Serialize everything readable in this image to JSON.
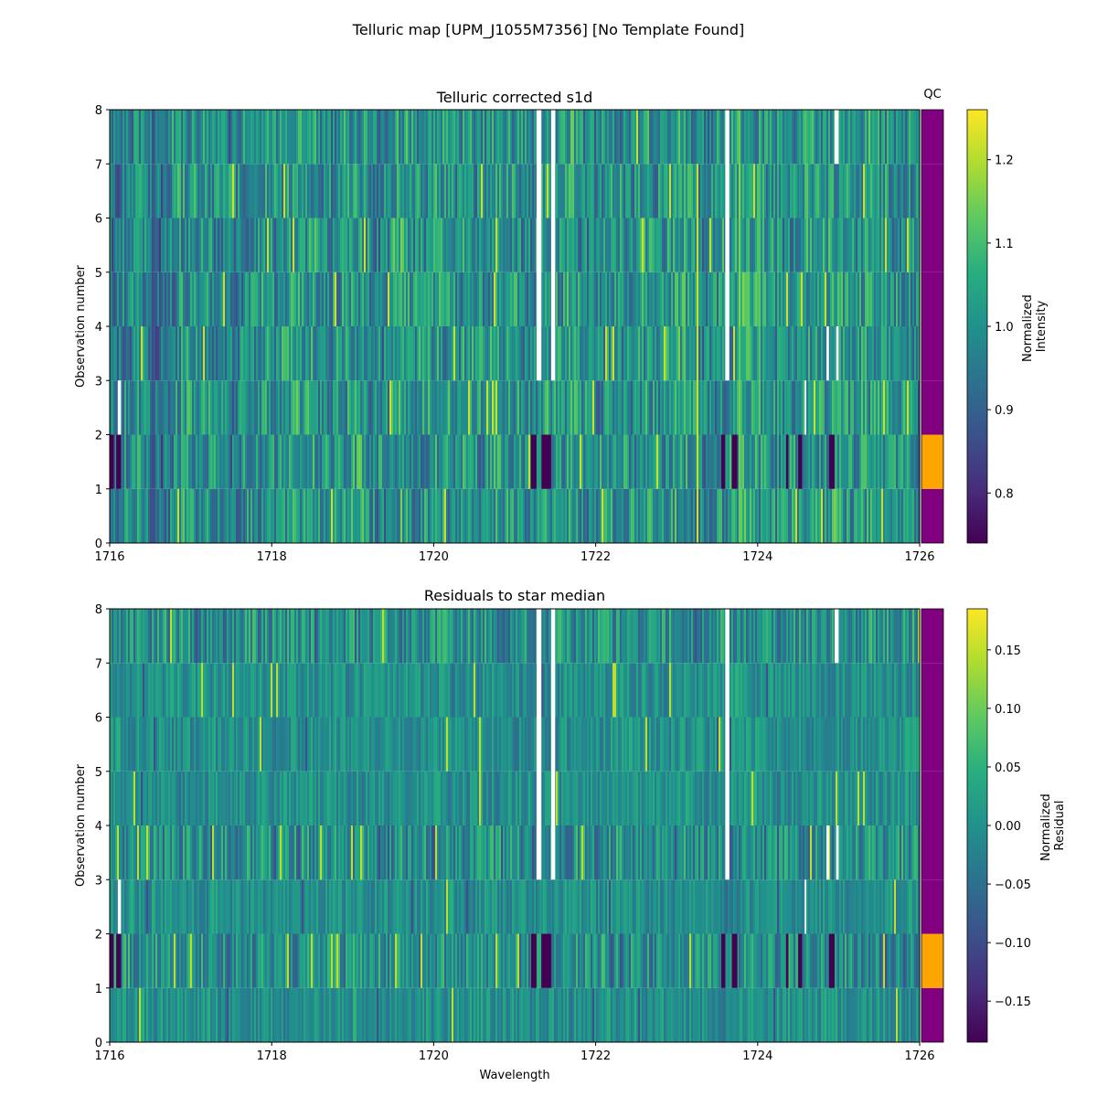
{
  "figure": {
    "suptitle": "Telluric map [UPM_J1055M7356] [No Template Found]"
  },
  "chart_data": [
    {
      "type": "heatmap",
      "title": "Telluric corrected s1d",
      "xlabel": "",
      "ylabel": "Observation number",
      "xlim": [
        1716,
        1726
      ],
      "ylim": [
        0,
        8
      ],
      "x_ticks": [
        "1716",
        "1718",
        "1720",
        "1722",
        "1724",
        "1726"
      ],
      "y_ticks": [
        "0",
        "1",
        "2",
        "3",
        "4",
        "5",
        "6",
        "7",
        "8"
      ],
      "colormap": "viridis",
      "value_range": [
        0.74,
        1.26
      ],
      "colorbar_label_lines": [
        "Normalized",
        "Intensity"
      ],
      "colorbar_ticks": [
        "0.8",
        "0.9",
        "1.0",
        "1.1",
        "1.2"
      ],
      "colorbar_tick_values": [
        0.8,
        0.9,
        1.0,
        1.1,
        1.2
      ],
      "observations": 8,
      "qc_title": "QC",
      "qc": [
        "fail",
        "pass",
        "fail",
        "fail",
        "fail",
        "fail",
        "fail",
        "fail"
      ],
      "qc_colors": {
        "pass": "#ffa500",
        "fail": "#800080"
      },
      "masked_wavelengths": [
        {
          "obs": [
            3,
            8
          ],
          "ranges": [
            [
              1721.27,
              1721.33
            ],
            [
              1721.45,
              1721.5
            ],
            [
              1723.6,
              1723.65
            ]
          ]
        },
        {
          "obs": [
            7,
            8
          ],
          "ranges": [
            [
              1724.95,
              1725.0
            ]
          ]
        },
        {
          "obs": [
            2,
            3
          ],
          "ranges": [
            [
              1716.1,
              1716.14
            ],
            [
              1724.58,
              1724.6
            ]
          ]
        },
        {
          "obs": [
            3,
            4
          ],
          "ranges": [
            [
              1724.85,
              1724.88
            ],
            [
              1724.97,
              1725.0
            ]
          ]
        }
      ],
      "dark_wavelengths": [
        {
          "obs": [
            1,
            2
          ],
          "ranges": [
            [
              1716.0,
              1716.05
            ],
            [
              1716.08,
              1716.14
            ],
            [
              1721.2,
              1721.27
            ],
            [
              1721.33,
              1721.45
            ],
            [
              1723.55,
              1723.6
            ],
            [
              1723.68,
              1723.75
            ],
            [
              1724.35,
              1724.38
            ],
            [
              1724.5,
              1724.55
            ],
            [
              1724.88,
              1724.95
            ]
          ]
        }
      ]
    },
    {
      "type": "heatmap",
      "title": "Residuals to star median",
      "xlabel": "Wavelength",
      "ylabel": "Observation number",
      "xlim": [
        1716,
        1726
      ],
      "ylim": [
        0,
        8
      ],
      "x_ticks": [
        "1716",
        "1718",
        "1720",
        "1722",
        "1724",
        "1726"
      ],
      "y_ticks": [
        "0",
        "1",
        "2",
        "3",
        "4",
        "5",
        "6",
        "7",
        "8"
      ],
      "colormap": "viridis",
      "value_range": [
        -0.185,
        0.185
      ],
      "colorbar_label_lines": [
        "Normalized",
        "Residual"
      ],
      "colorbar_ticks": [
        "−0.15",
        "−0.10",
        "−0.05",
        "0.00",
        "0.05",
        "0.10",
        "0.15"
      ],
      "colorbar_tick_values": [
        -0.15,
        -0.1,
        -0.05,
        0.0,
        0.05,
        0.1,
        0.15
      ],
      "observations": 8,
      "qc_title": "",
      "qc": [
        "fail",
        "pass",
        "fail",
        "fail",
        "fail",
        "fail",
        "fail",
        "fail"
      ],
      "qc_colors": {
        "pass": "#ffa500",
        "fail": "#800080"
      },
      "masked_wavelengths": [
        {
          "obs": [
            3,
            8
          ],
          "ranges": [
            [
              1721.27,
              1721.33
            ],
            [
              1721.45,
              1721.5
            ],
            [
              1723.6,
              1723.65
            ]
          ]
        },
        {
          "obs": [
            7,
            8
          ],
          "ranges": [
            [
              1724.95,
              1725.0
            ]
          ]
        },
        {
          "obs": [
            2,
            3
          ],
          "ranges": [
            [
              1716.1,
              1716.14
            ],
            [
              1724.58,
              1724.6
            ]
          ]
        },
        {
          "obs": [
            3,
            4
          ],
          "ranges": [
            [
              1724.85,
              1724.88
            ],
            [
              1724.97,
              1725.0
            ]
          ]
        }
      ],
      "dark_wavelengths": [
        {
          "obs": [
            1,
            2
          ],
          "ranges": [
            [
              1716.0,
              1716.05
            ],
            [
              1716.08,
              1716.14
            ],
            [
              1721.2,
              1721.27
            ],
            [
              1721.33,
              1721.45
            ],
            [
              1723.55,
              1723.6
            ],
            [
              1723.68,
              1723.75
            ],
            [
              1724.35,
              1724.38
            ],
            [
              1724.5,
              1724.55
            ],
            [
              1724.88,
              1724.95
            ]
          ]
        }
      ]
    }
  ]
}
